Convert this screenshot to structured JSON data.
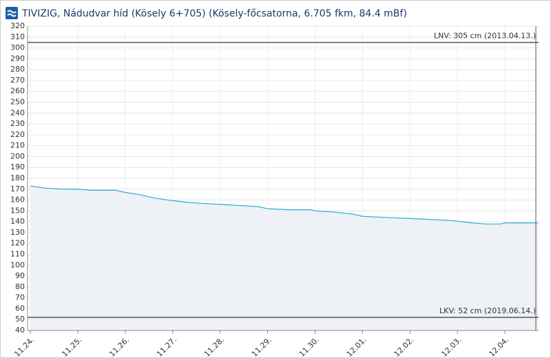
{
  "chart_data": {
    "type": "line",
    "title": "TIVIZIG, Nádudvar híd (Kösely 6+705) (Kösely-főcsatorna, 6.705 fkm, 84.4 mBf)",
    "x": [
      0,
      0.3,
      0.7,
      1.0,
      1.3,
      1.8,
      2.0,
      2.3,
      2.6,
      2.9,
      3.3,
      3.6,
      4.0,
      4.4,
      4.8,
      5.0,
      5.5,
      5.9,
      6.0,
      6.4,
      6.8,
      7.0,
      7.5,
      8.0,
      8.5,
      8.9,
      9.3,
      9.6,
      9.9,
      10.0,
      10.7
    ],
    "series": [
      {
        "color": "#2aa9d6",
        "fill": "#eef1f6",
        "values": [
          173,
          171,
          170,
          170,
          169,
          169,
          167,
          165,
          162,
          160,
          158,
          157,
          156,
          155,
          154,
          152,
          151,
          151,
          150,
          149,
          147,
          145,
          144,
          143,
          142,
          141,
          139,
          138,
          138,
          139,
          139
        ]
      }
    ],
    "xlim": [
      -0.06,
      10.71
    ],
    "xticks": [
      {
        "value": 0,
        "label": "11.24."
      },
      {
        "value": 1,
        "label": "11.25."
      },
      {
        "value": 2,
        "label": "11.26."
      },
      {
        "value": 3,
        "label": "11.27."
      },
      {
        "value": 4,
        "label": "11.28."
      },
      {
        "value": 5,
        "label": "11.29."
      },
      {
        "value": 6,
        "label": "11.30."
      },
      {
        "value": 7,
        "label": "12.01."
      },
      {
        "value": 8,
        "label": "12.02."
      },
      {
        "value": 9,
        "label": "12.03."
      },
      {
        "value": 10,
        "label": "12.04."
      }
    ],
    "ylim": [
      40,
      320
    ],
    "yticks": [
      40,
      50,
      60,
      70,
      80,
      90,
      100,
      110,
      120,
      130,
      140,
      150,
      160,
      170,
      180,
      190,
      200,
      210,
      220,
      230,
      240,
      250,
      260,
      270,
      280,
      290,
      300,
      310,
      320
    ],
    "grid": true,
    "thresholds": [
      {
        "value": 305,
        "label": "LNV: 305 cm (2013.04.13.)"
      },
      {
        "value": 52,
        "label": "LKV: 52 cm (2019.06.14.)"
      }
    ]
  }
}
